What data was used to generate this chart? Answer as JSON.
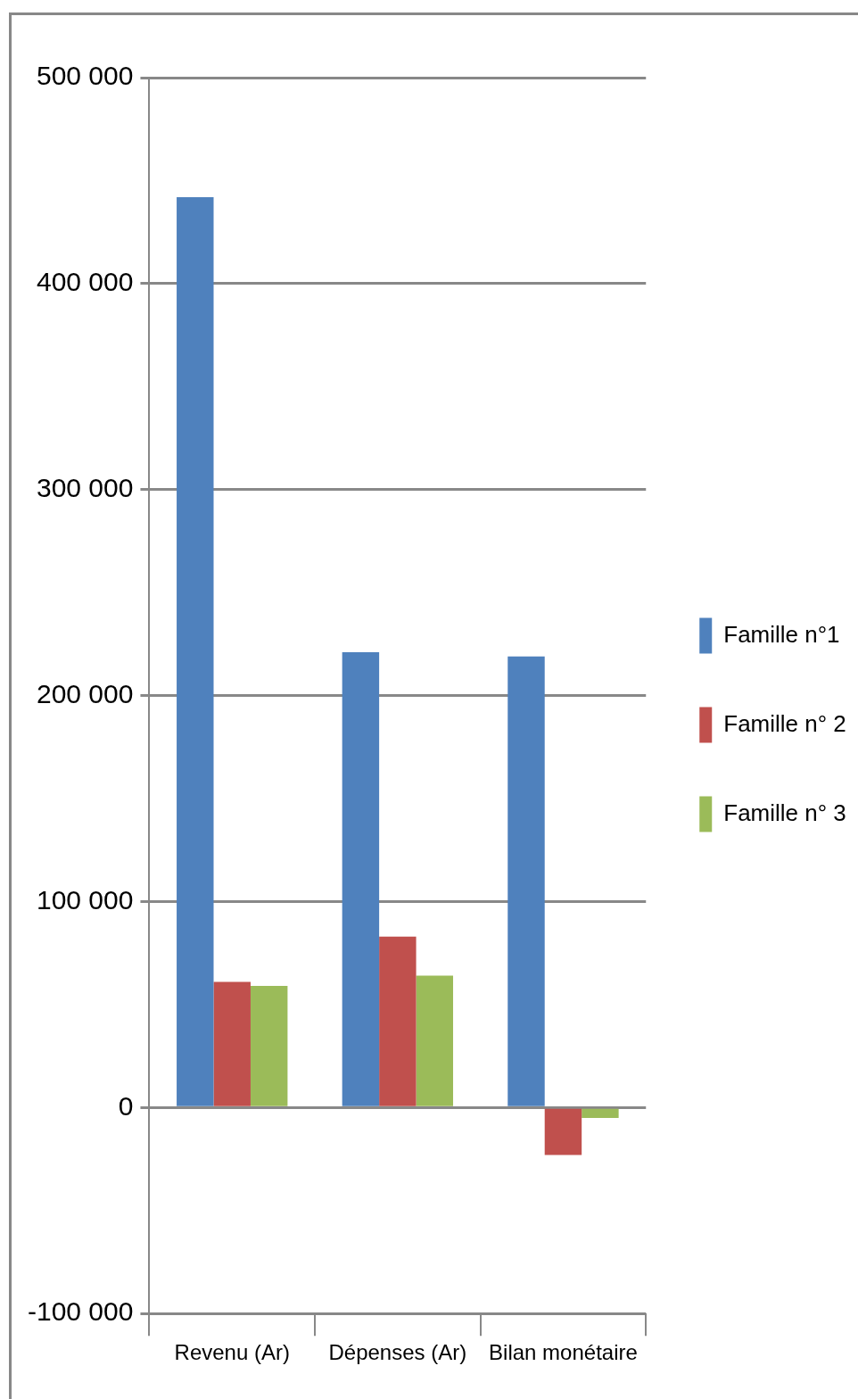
{
  "chart_data": {
    "type": "bar",
    "categories": [
      "Revenu (Ar)",
      "Dépenses (Ar)",
      "Bilan monétaire"
    ],
    "series": [
      {
        "name": "Famille n°1",
        "color": "#4f81bd",
        "values": [
          442000,
          221000,
          219000
        ]
      },
      {
        "name": "Famille n° 2",
        "color": "#c0504d",
        "values": [
          61000,
          83000,
          -23000
        ]
      },
      {
        "name": "Famille n° 3",
        "color": "#9bbb59",
        "values": [
          59000,
          64000,
          -5000
        ]
      }
    ],
    "ylim": [
      -100000,
      500000
    ],
    "yticks": [
      {
        "value": -100000,
        "label": "-100 000"
      },
      0,
      {
        "value": 100000,
        "label": "100 000"
      },
      {
        "value": 200000,
        "label": "200 000"
      },
      {
        "value": 300000,
        "label": "300 000"
      },
      {
        "value": 400000,
        "label": "400 000"
      },
      {
        "value": 500000,
        "label": "500 000"
      }
    ],
    "grid": "y",
    "legend": "right"
  }
}
